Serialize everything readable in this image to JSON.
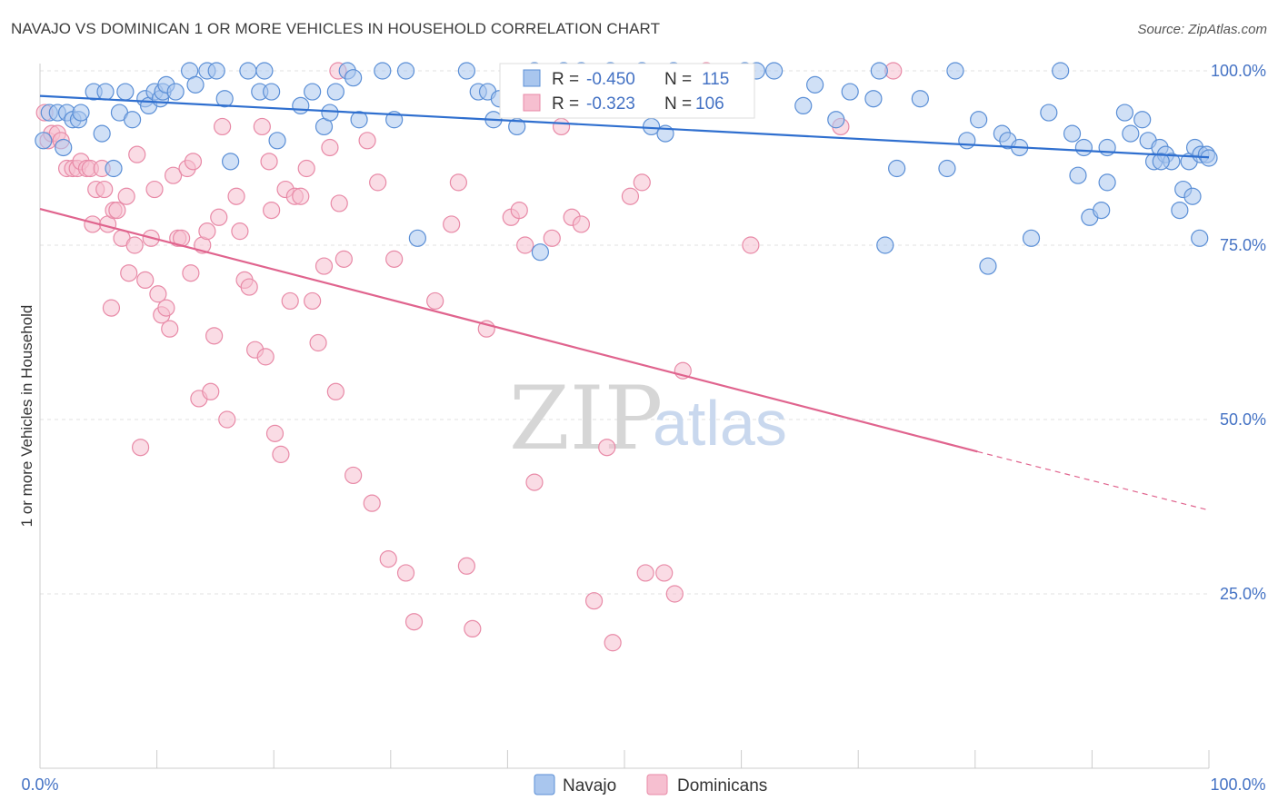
{
  "title": "NAVAJO VS DOMINICAN 1 OR MORE VEHICLES IN HOUSEHOLD CORRELATION CHART",
  "source": "Source: ZipAtlas.com",
  "watermark": {
    "zip": "ZIP",
    "atlas": "atlas"
  },
  "legend": {
    "navajo": {
      "r_label": "R =",
      "r_value": "-0.450",
      "n_label": "N =",
      "n_value": "115"
    },
    "dominican": {
      "r_label": "R =",
      "r_value": "-0.323",
      "n_label": "N =",
      "n_value": "106"
    }
  },
  "colors": {
    "navajo_fill": "#a9c6ee",
    "navajo_stroke": "#5b8fd6",
    "navajo_line": "#2f6fcf",
    "dominican_fill": "#f6bfd0",
    "dominican_stroke": "#e88aa7",
    "dominican_line": "#e0648e",
    "tick_text": "#4472c4",
    "grid": "#e0e0e0"
  },
  "chart_data": {
    "type": "scatter",
    "title": "NAVAJO VS DOMINICAN 1 OR MORE VEHICLES IN HOUSEHOLD CORRELATION CHART",
    "xlabel": "",
    "ylabel": "1 or more Vehicles in Household",
    "xlim": [
      0,
      100
    ],
    "ylim": [
      0,
      100
    ],
    "x_tick_labels": [
      "0.0%",
      "100.0%"
    ],
    "y_tick_labels": [
      "25.0%",
      "50.0%",
      "75.0%",
      "100.0%"
    ],
    "y_ticks": [
      25,
      50,
      75,
      100
    ],
    "grid": "horizontal dashed",
    "legend_position": "bottom-center",
    "series": [
      {
        "name": "Navajo",
        "r": -0.45,
        "n": 115,
        "trend": {
          "x0": 0,
          "y0": 96.4,
          "x1": 100,
          "y1": 87.6
        },
        "points": [
          [
            0.3,
            90
          ],
          [
            0.8,
            94
          ],
          [
            1.5,
            94
          ],
          [
            2,
            89
          ],
          [
            2.3,
            94
          ],
          [
            2.8,
            93
          ],
          [
            3.3,
            93
          ],
          [
            3.5,
            94
          ],
          [
            4.6,
            97
          ],
          [
            5.3,
            91
          ],
          [
            5.6,
            97
          ],
          [
            6.3,
            86
          ],
          [
            6.8,
            94
          ],
          [
            7.3,
            97
          ],
          [
            7.9,
            93
          ],
          [
            9,
            96
          ],
          [
            9.3,
            95
          ],
          [
            9.8,
            97
          ],
          [
            10.3,
            96
          ],
          [
            10.5,
            97
          ],
          [
            10.8,
            98
          ],
          [
            11.6,
            97
          ],
          [
            12.8,
            100
          ],
          [
            13.3,
            98
          ],
          [
            14.3,
            100
          ],
          [
            15.1,
            100
          ],
          [
            15.8,
            96
          ],
          [
            16.3,
            87
          ],
          [
            17.8,
            100
          ],
          [
            18.8,
            97
          ],
          [
            19.2,
            100
          ],
          [
            19.8,
            97
          ],
          [
            20.3,
            90
          ],
          [
            22.3,
            95
          ],
          [
            23.3,
            97
          ],
          [
            24.3,
            92
          ],
          [
            24.8,
            94
          ],
          [
            25.3,
            97
          ],
          [
            26.3,
            100
          ],
          [
            26.8,
            99
          ],
          [
            27.3,
            93
          ],
          [
            29.3,
            100
          ],
          [
            30.3,
            93
          ],
          [
            31.3,
            100
          ],
          [
            32.3,
            76
          ],
          [
            36.5,
            100
          ],
          [
            37.5,
            97
          ],
          [
            38.3,
            97
          ],
          [
            38.8,
            93
          ],
          [
            39.3,
            96
          ],
          [
            40.8,
            92
          ],
          [
            42.3,
            100
          ],
          [
            42.8,
            74
          ],
          [
            44.8,
            100
          ],
          [
            46.3,
            100
          ],
          [
            47.3,
            99
          ],
          [
            48.8,
            100
          ],
          [
            51.5,
            100
          ],
          [
            52.3,
            92
          ],
          [
            53.5,
            91
          ],
          [
            54.2,
            100
          ],
          [
            56.3,
            96
          ],
          [
            60.3,
            100
          ],
          [
            61.3,
            100
          ],
          [
            62.8,
            100
          ],
          [
            65.3,
            95
          ],
          [
            66.3,
            98
          ],
          [
            68.1,
            93
          ],
          [
            69.3,
            97
          ],
          [
            71.8,
            100
          ],
          [
            71.3,
            96
          ],
          [
            72.3,
            75
          ],
          [
            73.3,
            86
          ],
          [
            75.3,
            96
          ],
          [
            77.6,
            86
          ],
          [
            78.3,
            100
          ],
          [
            79.3,
            90
          ],
          [
            80.3,
            93
          ],
          [
            81.1,
            72
          ],
          [
            82.3,
            91
          ],
          [
            82.8,
            90
          ],
          [
            83.8,
            89
          ],
          [
            84.8,
            76
          ],
          [
            86.3,
            94
          ],
          [
            87.3,
            100
          ],
          [
            88.3,
            91
          ],
          [
            88.8,
            85
          ],
          [
            89.3,
            89
          ],
          [
            89.8,
            79
          ],
          [
            90.8,
            80
          ],
          [
            91.3,
            89
          ],
          [
            91.3,
            84
          ],
          [
            92.8,
            94
          ],
          [
            93.3,
            91
          ],
          [
            94.3,
            93
          ],
          [
            94.8,
            90
          ],
          [
            95.3,
            87
          ],
          [
            95.8,
            89
          ],
          [
            96.3,
            88
          ],
          [
            96.8,
            87
          ],
          [
            97.5,
            80
          ],
          [
            97.8,
            83
          ],
          [
            98.3,
            87
          ],
          [
            98.8,
            89
          ],
          [
            99.3,
            88
          ],
          [
            99.8,
            88
          ],
          [
            100,
            87.5
          ],
          [
            99.2,
            76
          ],
          [
            98.6,
            82
          ],
          [
            95.9,
            87
          ]
        ]
      },
      {
        "name": "Dominicans",
        "r": -0.323,
        "n": 106,
        "trend": {
          "x0": 0,
          "y0": 80.2,
          "x1": 80.2,
          "y1": 45.4
        },
        "trend_dashed": {
          "x0": 80.2,
          "y0": 45.4,
          "x1": 100,
          "y1": 37.0
        },
        "points": [
          [
            0.4,
            94
          ],
          [
            0.7,
            90
          ],
          [
            1,
            91
          ],
          [
            1.5,
            91
          ],
          [
            1.8,
            90
          ],
          [
            2.3,
            86
          ],
          [
            2.8,
            86
          ],
          [
            3.2,
            86
          ],
          [
            3.5,
            87
          ],
          [
            4,
            86
          ],
          [
            4.3,
            86
          ],
          [
            4.5,
            78
          ],
          [
            4.8,
            83
          ],
          [
            5.3,
            86
          ],
          [
            5.5,
            83
          ],
          [
            5.8,
            78
          ],
          [
            6.1,
            66
          ],
          [
            6.3,
            80
          ],
          [
            6.6,
            80
          ],
          [
            7,
            76
          ],
          [
            7.4,
            82
          ],
          [
            7.6,
            71
          ],
          [
            8.1,
            75
          ],
          [
            8.3,
            88
          ],
          [
            8.6,
            46
          ],
          [
            9,
            70
          ],
          [
            9.5,
            76
          ],
          [
            9.8,
            83
          ],
          [
            10.1,
            68
          ],
          [
            10.4,
            65
          ],
          [
            10.8,
            66
          ],
          [
            11.1,
            63
          ],
          [
            11.4,
            85
          ],
          [
            11.8,
            76
          ],
          [
            12.1,
            76
          ],
          [
            12.6,
            86
          ],
          [
            12.9,
            71
          ],
          [
            13.1,
            87
          ],
          [
            13.6,
            53
          ],
          [
            13.9,
            75
          ],
          [
            14.3,
            77
          ],
          [
            14.6,
            54
          ],
          [
            14.9,
            62
          ],
          [
            15.3,
            79
          ],
          [
            15.6,
            92
          ],
          [
            16,
            50
          ],
          [
            16.8,
            82
          ],
          [
            17.1,
            77
          ],
          [
            17.5,
            70
          ],
          [
            17.9,
            69
          ],
          [
            18.4,
            60
          ],
          [
            19,
            92
          ],
          [
            19.3,
            59
          ],
          [
            19.6,
            87
          ],
          [
            19.8,
            80
          ],
          [
            20.1,
            48
          ],
          [
            20.6,
            45
          ],
          [
            21,
            83
          ],
          [
            21.4,
            67
          ],
          [
            21.8,
            82
          ],
          [
            22.3,
            82
          ],
          [
            22.8,
            86
          ],
          [
            23.3,
            67
          ],
          [
            23.8,
            61
          ],
          [
            24.3,
            72
          ],
          [
            24.8,
            89
          ],
          [
            25.3,
            54
          ],
          [
            25.6,
            81
          ],
          [
            26,
            73
          ],
          [
            26.8,
            42
          ],
          [
            28,
            90
          ],
          [
            28.4,
            38
          ],
          [
            28.9,
            84
          ],
          [
            29.8,
            30
          ],
          [
            30.3,
            73
          ],
          [
            31.3,
            28
          ],
          [
            32,
            21
          ],
          [
            33.8,
            67
          ],
          [
            35.2,
            78
          ],
          [
            35.8,
            84
          ],
          [
            36.5,
            29
          ],
          [
            37,
            20
          ],
          [
            38.2,
            63
          ],
          [
            40.3,
            79
          ],
          [
            41,
            80
          ],
          [
            41.5,
            75
          ],
          [
            42.3,
            41
          ],
          [
            43.8,
            76
          ],
          [
            44.6,
            92
          ],
          [
            45.5,
            79
          ],
          [
            46.3,
            78
          ],
          [
            47.4,
            24
          ],
          [
            48.5,
            46
          ],
          [
            49,
            18
          ],
          [
            50.5,
            82
          ],
          [
            51.5,
            84
          ],
          [
            51.8,
            28
          ],
          [
            53.4,
            28
          ],
          [
            54.3,
            25
          ],
          [
            55,
            57
          ],
          [
            56,
            96
          ],
          [
            57,
            100
          ],
          [
            60.8,
            75
          ],
          [
            68.5,
            92
          ],
          [
            73,
            100
          ],
          [
            25.5,
            100
          ]
        ]
      }
    ]
  },
  "bottom_legend": {
    "navajo": "Navajo",
    "dominicans": "Dominicans"
  }
}
